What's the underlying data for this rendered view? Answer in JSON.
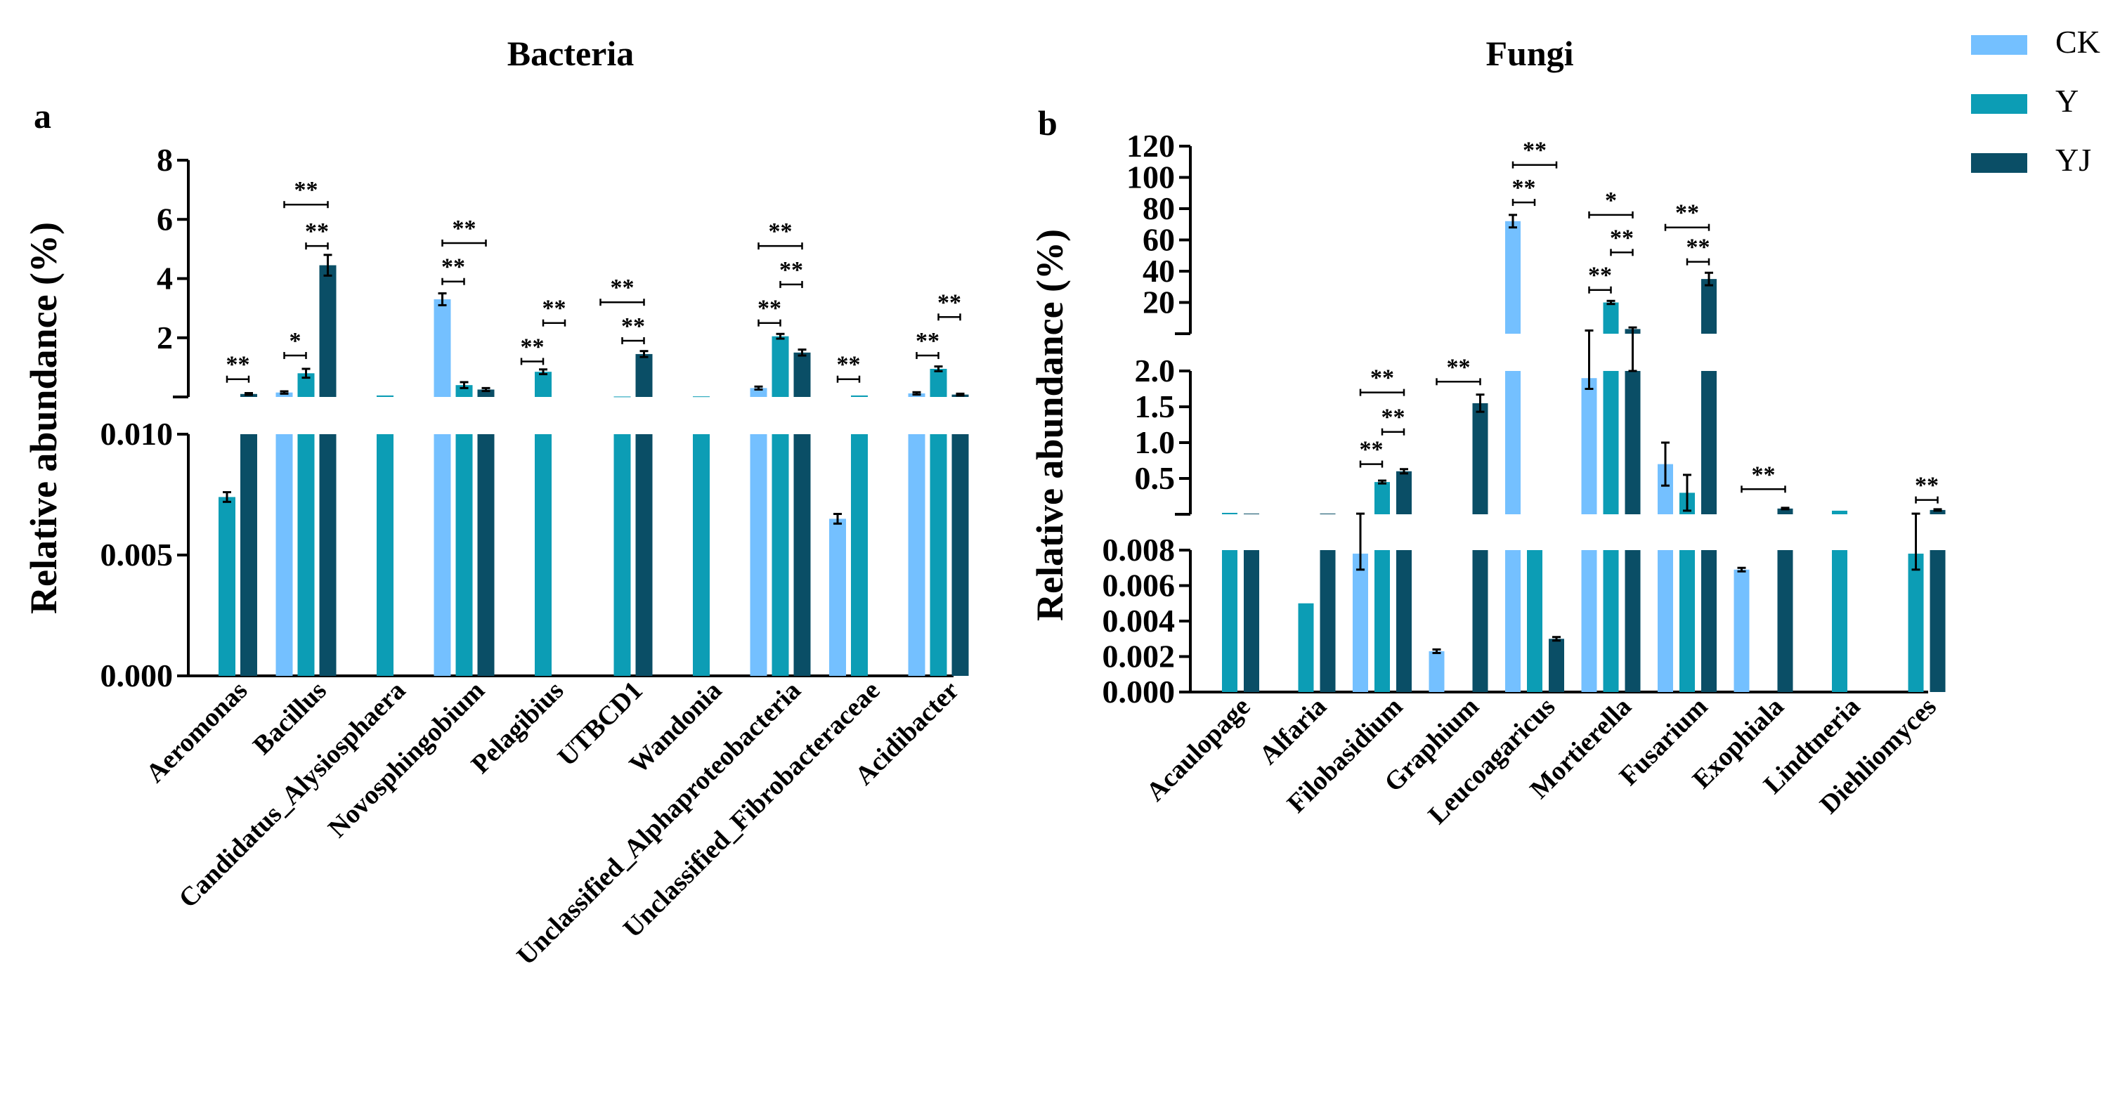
{
  "colors": {
    "CK": "#74c0ff",
    "Y": "#0c9db5",
    "YJ": "#0a4e66"
  },
  "legend": [
    {
      "name": "CK",
      "color": "#74c0ff"
    },
    {
      "name": "Y",
      "color": "#0c9db5"
    },
    {
      "name": "YJ",
      "color": "#0a4e66"
    }
  ],
  "chart_data": [
    {
      "type": "bar",
      "panel": "a",
      "title": "Bacteria",
      "ylabel": "Relative abundance (%)",
      "series_names": [
        "CK",
        "Y",
        "YJ"
      ],
      "categories": [
        "Aeromonas",
        "Bacillus",
        "Candidatus_Alysiosphaera",
        "Novosphingobium",
        "Pelagibius",
        "UTBCD1",
        "Wandonia",
        "Unclassified_Alphaproteobacteria",
        "Unclassified_Fibrobacteraceae",
        "Acidibacter"
      ],
      "segments": [
        {
          "range": [
            0,
            0.01
          ],
          "ticks": [
            0,
            0.005,
            0.01
          ],
          "tick_labels": [
            "0.000",
            "0.005",
            "0.010"
          ]
        },
        {
          "range": [
            0,
            8
          ],
          "ticks": [
            2,
            4,
            6,
            8
          ],
          "tick_labels": [
            "2",
            "4",
            "6",
            "8"
          ]
        }
      ],
      "series": [
        {
          "name": "CK",
          "values": [
            0,
            0.15,
            0,
            3.3,
            0,
            0,
            0,
            0.3,
            0.0065,
            0.12
          ],
          "errors": [
            0,
            0.04,
            0,
            0.2,
            0,
            0,
            0,
            0.05,
            0.0002,
            0.04
          ]
        },
        {
          "name": "Y",
          "values": [
            0.0074,
            0.8,
            0.05,
            0.4,
            0.85,
            0.015,
            0.02,
            2.05,
            0.05,
            0.95
          ],
          "errors": [
            0.0002,
            0.15,
            0,
            0.1,
            0.08,
            0,
            0,
            0.08,
            0,
            0.08
          ]
        },
        {
          "name": "YJ",
          "values": [
            0.1,
            4.45,
            0,
            0.25,
            0,
            1.45,
            0,
            1.5,
            0,
            0.08
          ],
          "errors": [
            0.03,
            0.35,
            0,
            0.05,
            0,
            0.1,
            0,
            0.1,
            0,
            0.03
          ]
        }
      ],
      "annotations": [
        {
          "category": "Aeromonas",
          "text": "**",
          "from": "Y",
          "to": "YJ",
          "level": 0.6
        },
        {
          "category": "Bacillus",
          "text": "*",
          "from": "CK",
          "to": "Y",
          "level": 1.4
        },
        {
          "category": "Bacillus",
          "text": "**",
          "from": "Y",
          "to": "YJ",
          "level": 5.1
        },
        {
          "category": "Bacillus",
          "text": "**",
          "from": "CK",
          "to": "YJ",
          "level": 6.5
        },
        {
          "category": "Novosphingobium",
          "text": "**",
          "from": "CK",
          "to": "Y",
          "level": 3.9
        },
        {
          "category": "Novosphingobium",
          "text": "**",
          "from": "CK",
          "to": "YJ",
          "level": 5.2
        },
        {
          "category": "Pelagibius",
          "text": "**",
          "from": "CK",
          "to": "Y",
          "level": 1.2
        },
        {
          "category": "Pelagibius",
          "text": "**",
          "from": "Y",
          "to": "YJ",
          "level": 2.5
        },
        {
          "category": "UTBCD1",
          "text": "**",
          "from": "Y",
          "to": "YJ",
          "level": 1.9
        },
        {
          "category": "UTBCD1",
          "text": "**",
          "from": "CK",
          "to": "YJ",
          "level": 3.2
        },
        {
          "category": "Unclassified_Alphaproteobacteria",
          "text": "**",
          "from": "CK",
          "to": "Y",
          "level": 2.5
        },
        {
          "category": "Unclassified_Alphaproteobacteria",
          "text": "**",
          "from": "Y",
          "to": "YJ",
          "level": 3.8
        },
        {
          "category": "Unclassified_Alphaproteobacteria",
          "text": "**",
          "from": "CK",
          "to": "YJ",
          "level": 5.1
        },
        {
          "category": "Unclassified_Fibrobacteraceae",
          "text": "**",
          "from": "CK",
          "to": "Y",
          "level": 0.6
        },
        {
          "category": "Acidibacter",
          "text": "**",
          "from": "CK",
          "to": "Y",
          "level": 1.4
        },
        {
          "category": "Acidibacter",
          "text": "**",
          "from": "Y",
          "to": "YJ",
          "level": 2.7
        }
      ]
    },
    {
      "type": "bar",
      "panel": "b",
      "title": "Fungi",
      "ylabel": "Relative abundance (%)",
      "series_names": [
        "CK",
        "Y",
        "YJ"
      ],
      "categories": [
        "Acaulopage",
        "Alfaria",
        "Filobasidium",
        "Graphium",
        "Leucoagaricus",
        "Mortierella",
        "Fusarium",
        "Exophiala",
        "Lindtneria",
        "Diehliomyces"
      ],
      "segments": [
        {
          "range": [
            0,
            0.008
          ],
          "ticks": [
            0,
            0.002,
            0.004,
            0.006,
            0.008
          ],
          "tick_labels": [
            "0.000",
            "0.002",
            "0.004",
            "0.006",
            "0.008"
          ]
        },
        {
          "range": [
            0,
            2.0
          ],
          "ticks": [
            0.5,
            1.0,
            1.5,
            2.0
          ],
          "tick_labels": [
            "0.5",
            "1.0",
            "1.5",
            "2.0"
          ]
        },
        {
          "range": [
            0,
            120
          ],
          "ticks": [
            20,
            40,
            60,
            80,
            100,
            120
          ],
          "tick_labels": [
            "20",
            "40",
            "60",
            "80",
            "100",
            "120"
          ]
        }
      ],
      "series": [
        {
          "name": "CK",
          "values": [
            0,
            0,
            0.0078,
            0.0023,
            72,
            1.9,
            0.7,
            0.0069,
            0,
            0
          ],
          "errors": [
            0,
            0,
            0.0009,
            0.0001,
            4,
            0.15,
            0.3,
            0.0001,
            0,
            0
          ]
        },
        {
          "name": "Y",
          "values": [
            0.02,
            0.005,
            0.45,
            0,
            0.008,
            20,
            0.3,
            0,
            0.05,
            0.0078
          ],
          "errors": [
            0,
            0,
            0.02,
            0,
            0,
            1,
            0.25,
            0,
            0,
            0.0009
          ]
        },
        {
          "name": "YJ",
          "values": [
            0.01,
            0.01,
            0.6,
            1.55,
            0.003,
            3,
            35,
            0.08,
            0,
            0.06
          ],
          "errors": [
            0,
            0,
            0.03,
            0.12,
            0.0001,
            1,
            4,
            0.01,
            0,
            0.01
          ]
        }
      ],
      "annotations": [
        {
          "category": "Filobasidium",
          "text": "**",
          "from": "CK",
          "to": "Y",
          "level": 0.7
        },
        {
          "category": "Filobasidium",
          "text": "**",
          "from": "Y",
          "to": "YJ",
          "level": 1.15
        },
        {
          "category": "Filobasidium",
          "text": "**",
          "from": "CK",
          "to": "YJ",
          "level": 1.7
        },
        {
          "category": "Graphium",
          "text": "**",
          "from": "CK",
          "to": "YJ",
          "level": 1.85
        },
        {
          "category": "Leucoagaricus",
          "text": "**",
          "from": "CK",
          "to": "Y",
          "level": 84
        },
        {
          "category": "Leucoagaricus",
          "text": "**",
          "from": "CK",
          "to": "YJ",
          "level": 108
        },
        {
          "category": "Mortierella",
          "text": "**",
          "from": "CK",
          "to": "Y",
          "level": 28
        },
        {
          "category": "Mortierella",
          "text": "**",
          "from": "Y",
          "to": "YJ",
          "level": 52
        },
        {
          "category": "Mortierella",
          "text": "*",
          "from": "CK",
          "to": "YJ",
          "level": 76
        },
        {
          "category": "Fusarium",
          "text": "**",
          "from": "Y",
          "to": "YJ",
          "level": 46
        },
        {
          "category": "Fusarium",
          "text": "**",
          "from": "CK",
          "to": "YJ",
          "level": 68
        },
        {
          "category": "Exophiala",
          "text": "**",
          "from": "CK",
          "to": "YJ",
          "level": 0.35
        },
        {
          "category": "Diehliomyces",
          "text": "**",
          "from": "Y",
          "to": "YJ",
          "level": 0.2
        }
      ]
    }
  ]
}
